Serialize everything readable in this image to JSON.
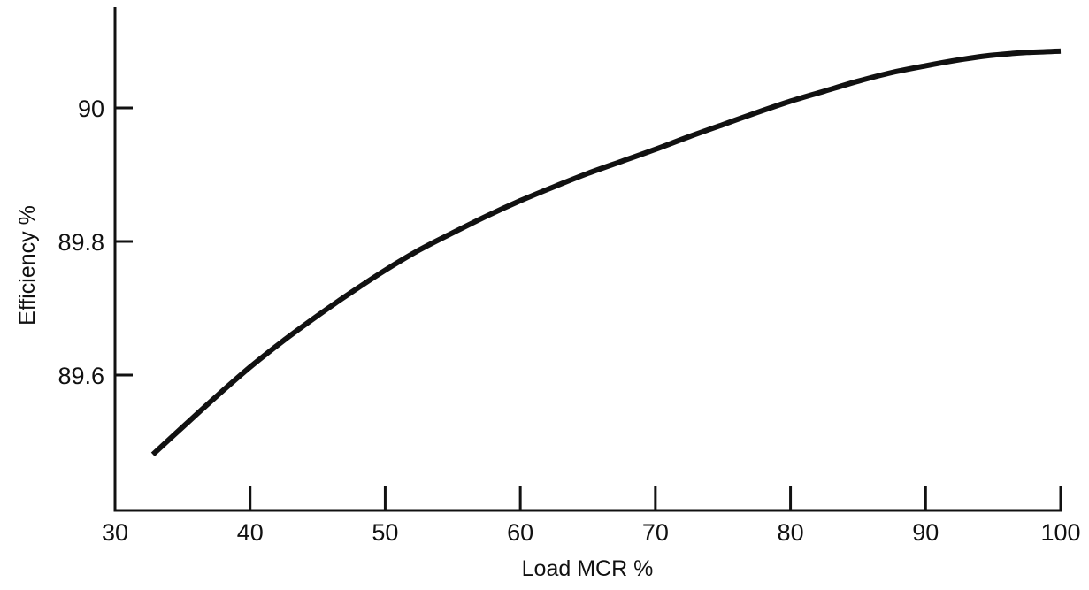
{
  "chart_data": {
    "type": "line",
    "title": "",
    "xlabel": "Load MCR %",
    "ylabel": "Efficiency %",
    "xlim": [
      30,
      100
    ],
    "ylim": [
      89.46,
      90.13
    ],
    "x_ticks": [
      30,
      40,
      50,
      60,
      70,
      80,
      90,
      100
    ],
    "x_tick_labels": [
      "30",
      "40",
      "50",
      "60",
      "70",
      "80",
      "90",
      "100"
    ],
    "y_ticks": [
      89.6,
      89.8,
      90.0
    ],
    "y_tick_labels": [
      "89.6",
      "89.8",
      "90"
    ],
    "grid": false,
    "legend": "none",
    "line_color": "#111111",
    "series": [
      {
        "x": [
          32.8,
          35,
          37.5,
          40,
          42.5,
          45,
          47.5,
          50,
          52.5,
          55,
          57.5,
          60,
          62.5,
          65,
          67.5,
          70,
          72.5,
          75,
          77.5,
          80,
          82.5,
          85,
          87.5,
          90,
          92.5,
          95,
          97.5,
          100
        ],
        "values": [
          89.481,
          89.522,
          89.568,
          89.612,
          89.652,
          89.689,
          89.724,
          89.757,
          89.787,
          89.813,
          89.838,
          89.861,
          89.882,
          89.902,
          89.92,
          89.938,
          89.957,
          89.975,
          89.993,
          90.01,
          90.025,
          90.04,
          90.053,
          90.063,
          90.072,
          90.079,
          90.083,
          90.085
        ]
      }
    ]
  }
}
